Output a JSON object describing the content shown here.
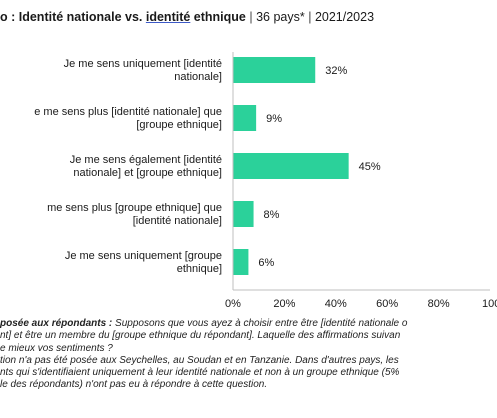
{
  "title": {
    "lead": "o : ",
    "part1": "Identité nationale vs. ",
    "part2": "identité",
    "part3": " ethnique",
    "sep1": "  |  ",
    "countries": "36 pays*",
    "sep2": "  |  ",
    "years": "2021/2023"
  },
  "notes": {
    "question_label": "posée aux répondants :",
    "line1": " Supposons que vous ayez à choisir entre être [identité nationale o",
    "line2": "nt] et être un membre du [groupe ethnique du répondant]. Laquelle des affirmations suivan",
    "line3": "e mieux vos sentiments ?",
    "line4": "tion n'a pas été posée aux Seychelles, au Soudan et en Tanzanie. Dans d'autres pays, les",
    "line5": "nts qui s'identifiaient uniquement à leur identité nationale et non à un groupe ethnique (5%",
    "line6": "le des répondants) n'ont pas eu à répondre à cette question."
  },
  "chart_data": {
    "type": "bar",
    "orientation": "horizontal",
    "categories": [
      [
        "Je me sens uniquement [identité",
        "nationale]"
      ],
      [
        "e me sens plus [identité nationale] que",
        "[groupe ethnique]"
      ],
      [
        "Je me sens également [identité",
        "nationale] et [groupe ethnique]"
      ],
      [
        "me sens plus [groupe ethnique] que",
        "[identité nationale]"
      ],
      [
        "Je me sens uniquement [groupe",
        "ethnique]"
      ]
    ],
    "values": [
      32,
      9,
      45,
      8,
      6
    ],
    "value_labels": [
      "32%",
      "9%",
      "45%",
      "8%",
      "6%"
    ],
    "xlim": [
      0,
      100
    ],
    "xticks": [
      "0%",
      "20%",
      "40%",
      "60%",
      "80%",
      "100"
    ],
    "grid": false,
    "colors": {
      "bar": "#2bd19a",
      "axis": "#bfbfbf"
    }
  }
}
